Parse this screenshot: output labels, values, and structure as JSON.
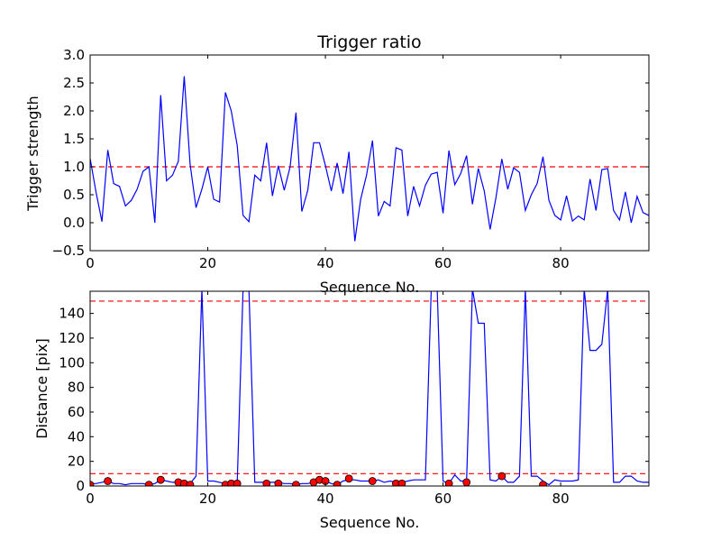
{
  "chart_data": [
    {
      "type": "line",
      "title": "Trigger ratio",
      "xlabel": "Sequence No.",
      "ylabel": "Trigger strength",
      "xlim": [
        0,
        95
      ],
      "ylim": [
        -0.5,
        3.0
      ],
      "xticks": [
        0,
        20,
        40,
        60,
        80
      ],
      "yticks": [
        -0.5,
        0.0,
        0.5,
        1.0,
        1.5,
        2.0,
        2.5,
        3.0
      ],
      "ytick_labels": [
        "−0.5",
        "0.0",
        "0.5",
        "1.0",
        "1.5",
        "2.0",
        "2.5",
        "3.0"
      ],
      "grid": false,
      "line_color": "#0000ff",
      "threshold_color": "#ff0000",
      "thresholds": [
        1.0
      ],
      "series": [
        {
          "x": [
            0,
            1,
            2,
            3,
            4,
            5,
            6,
            7,
            8,
            9,
            10,
            11,
            12,
            13,
            14,
            15,
            16,
            17,
            18,
            19,
            20,
            21,
            22,
            23,
            24,
            25,
            26,
            27,
            28,
            29,
            30,
            31,
            32,
            33,
            34,
            35,
            36,
            37,
            38,
            39,
            40,
            41,
            42,
            43,
            44,
            45,
            46,
            47,
            48,
            49,
            50,
            51,
            52,
            53,
            54,
            55,
            56,
            57,
            58,
            59,
            60,
            61,
            62,
            63,
            64,
            65,
            66,
            67,
            68,
            69,
            70,
            71,
            72,
            73,
            74,
            75,
            76,
            77,
            78,
            79,
            80,
            81,
            82,
            83,
            84,
            85,
            86,
            87,
            88,
            89,
            90,
            91,
            92,
            93,
            94,
            95
          ],
          "values": [
            1.15,
            0.55,
            0.02,
            1.3,
            0.7,
            0.65,
            0.3,
            0.4,
            0.6,
            0.92,
            1.0,
            0.0,
            2.28,
            0.75,
            0.85,
            1.1,
            2.62,
            1.05,
            0.27,
            0.6,
            1.0,
            0.42,
            0.37,
            2.33,
            2.0,
            1.38,
            0.13,
            0.02,
            0.85,
            0.75,
            1.43,
            0.48,
            1.02,
            0.58,
            1.0,
            1.97,
            0.2,
            0.58,
            1.43,
            1.43,
            1.02,
            0.57,
            1.07,
            0.52,
            1.27,
            -0.33,
            0.42,
            0.85,
            1.47,
            0.12,
            0.38,
            0.3,
            1.34,
            1.3,
            0.12,
            0.65,
            0.3,
            0.67,
            0.87,
            0.9,
            0.17,
            1.29,
            0.68,
            0.88,
            1.2,
            0.33,
            0.97,
            0.57,
            -0.12,
            0.45,
            1.14,
            0.6,
            0.98,
            0.9,
            0.22,
            0.5,
            0.7,
            1.18,
            0.4,
            0.13,
            0.05,
            0.48,
            0.03,
            0.12,
            0.05,
            0.78,
            0.22,
            0.95,
            0.97,
            0.22,
            0.05,
            0.55,
            0.0,
            0.47,
            0.18,
            0.13
          ]
        }
      ]
    },
    {
      "type": "line",
      "title": "",
      "xlabel": "Sequence No.",
      "ylabel": "Distance [pix]",
      "xlim": [
        0,
        95
      ],
      "ylim": [
        0,
        158
      ],
      "xticks": [
        0,
        20,
        40,
        60,
        80
      ],
      "yticks": [
        0,
        20,
        40,
        60,
        80,
        100,
        120,
        140
      ],
      "grid": false,
      "line_color": "#0000ff",
      "threshold_color": "#ff0000",
      "marker_color": "#ff0000",
      "thresholds": [
        10,
        150
      ],
      "series": [
        {
          "x": [
            0,
            1,
            2,
            3,
            4,
            5,
            6,
            7,
            8,
            9,
            10,
            11,
            12,
            13,
            14,
            15,
            16,
            17,
            18,
            19,
            20,
            21,
            22,
            23,
            24,
            25,
            26,
            27,
            28,
            29,
            30,
            31,
            32,
            33,
            34,
            35,
            36,
            37,
            38,
            39,
            40,
            41,
            42,
            43,
            44,
            45,
            46,
            47,
            48,
            49,
            50,
            51,
            52,
            53,
            54,
            55,
            56,
            57,
            58,
            59,
            60,
            61,
            62,
            63,
            64,
            65,
            66,
            67,
            68,
            69,
            70,
            71,
            72,
            73,
            74,
            75,
            76,
            77,
            78,
            79,
            80,
            81,
            82,
            83,
            84,
            85,
            86,
            87,
            88,
            89,
            90,
            91,
            92,
            93,
            94,
            95
          ],
          "values": [
            2,
            2,
            3,
            4,
            2,
            2,
            1,
            2,
            2,
            2,
            1,
            2,
            5,
            4,
            3,
            3,
            2,
            2,
            8,
            160,
            4,
            4,
            3,
            2,
            2,
            2,
            160,
            160,
            3,
            3,
            3,
            3,
            3,
            2,
            2,
            1,
            2,
            2,
            3,
            5,
            4,
            2,
            1,
            4,
            5,
            5,
            4,
            4,
            4,
            5,
            3,
            4,
            3,
            3,
            4,
            5,
            5,
            5,
            160,
            160,
            4,
            2,
            9,
            4,
            4,
            160,
            132,
            132,
            5,
            4,
            8,
            3,
            3,
            8,
            160,
            8,
            8,
            4,
            1,
            5,
            4,
            4,
            4,
            5,
            160,
            110,
            110,
            115,
            160,
            3,
            3,
            8,
            8,
            4,
            3,
            3
          ]
        }
      ],
      "markers": {
        "x": [
          0,
          3,
          10,
          12,
          15,
          16,
          17,
          23,
          24,
          25,
          30,
          32,
          35,
          38,
          39,
          40,
          42,
          44,
          48,
          52,
          53,
          61,
          64,
          70,
          77
        ],
        "values": [
          1,
          4,
          1,
          5,
          3,
          2,
          1,
          1,
          2,
          2,
          2,
          2,
          1,
          3,
          5,
          4,
          1,
          6,
          4,
          2,
          2,
          2,
          3,
          8,
          1
        ]
      }
    }
  ]
}
